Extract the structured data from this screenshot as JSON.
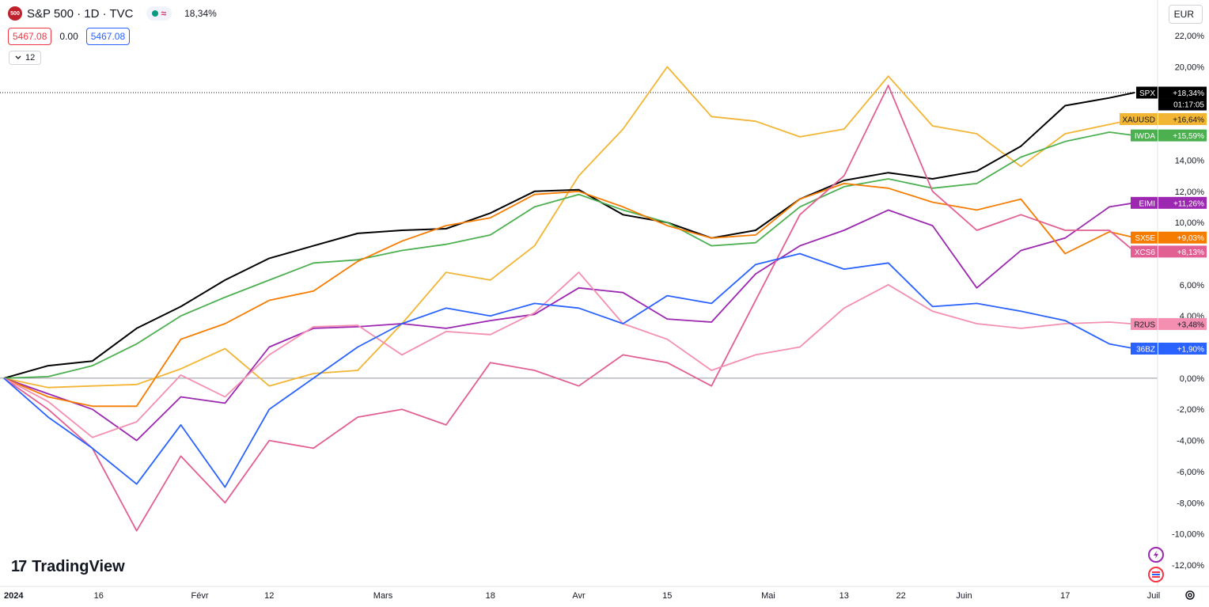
{
  "header": {
    "symbol_badge": "500",
    "title": "S&P 500 · 1D · TVC",
    "status_wave": "≈",
    "change": "18,34%",
    "price_left": "5467.08",
    "price_mid": "0.00",
    "price_right": "5467.08",
    "indicator_toggle": "12",
    "currency": "EUR"
  },
  "branding": {
    "logo_mark": "17",
    "logo_text": "TradingView"
  },
  "icons": {
    "collapse": "chevron-down-icon",
    "settings": "gear-icon",
    "lightning": "lightning-icon",
    "flag": "flag-icon",
    "currency_dropdown": "chevron-down-icon"
  },
  "chart_data": {
    "type": "line",
    "ylabel": "",
    "yscale": "percent",
    "ylim": [
      -13,
      23
    ],
    "yticks": [
      22,
      20,
      14,
      12,
      10,
      6,
      4,
      0,
      -2,
      -4,
      -6,
      -8,
      -10,
      -12
    ],
    "ytick_labels": [
      "22,00%",
      "20,00%",
      "14,00%",
      "12,00%",
      "10,00%",
      "6,00%",
      "4,00%",
      "0,00%",
      "-2,00%",
      "-4,00%",
      "-6,00%",
      "-8,00%",
      "-10,00%",
      "-12,00%"
    ],
    "xlim": [
      "2024-01-01",
      "2024-07-01"
    ],
    "xticks": [
      {
        "date": "2024-01-01",
        "label": "2024",
        "bold": true
      },
      {
        "date": "2024-01-16",
        "label": "16"
      },
      {
        "date": "2024-02-01",
        "label": "Févr"
      },
      {
        "date": "2024-02-12",
        "label": "12"
      },
      {
        "date": "2024-03-01",
        "label": "Mars"
      },
      {
        "date": "2024-03-18",
        "label": "18"
      },
      {
        "date": "2024-04-01",
        "label": "Avr"
      },
      {
        "date": "2024-04-15",
        "label": "15"
      },
      {
        "date": "2024-05-01",
        "label": "Mai"
      },
      {
        "date": "2024-05-13",
        "label": "13"
      },
      {
        "date": "2024-05-22",
        "label": "22"
      },
      {
        "date": "2024-06-01",
        "label": "Juin"
      },
      {
        "date": "2024-06-17",
        "label": "17"
      },
      {
        "date": "2024-07-01",
        "label": "Juil"
      }
    ],
    "zero_line": 0,
    "price_line": {
      "value": 18.34,
      "style": "dotted"
    },
    "legend_placement": "right-axis",
    "series": [
      {
        "name": "XAUUSD",
        "label": "+16,64%",
        "color": "#f2b534",
        "label_text_color": "#131722",
        "points": [
          [
            "2024-01-01",
            0
          ],
          [
            "2024-01-08",
            -0.6
          ],
          [
            "2024-01-15",
            -0.5
          ],
          [
            "2024-01-22",
            -0.4
          ],
          [
            "2024-01-29",
            0.6
          ],
          [
            "2024-02-05",
            1.9
          ],
          [
            "2024-02-12",
            -0.5
          ],
          [
            "2024-02-19",
            0.3
          ],
          [
            "2024-02-26",
            0.5
          ],
          [
            "2024-03-04",
            3.5
          ],
          [
            "2024-03-11",
            6.8
          ],
          [
            "2024-03-18",
            6.3
          ],
          [
            "2024-03-25",
            8.5
          ],
          [
            "2024-04-01",
            13.0
          ],
          [
            "2024-04-08",
            16.0
          ],
          [
            "2024-04-15",
            20.0
          ],
          [
            "2024-04-22",
            16.8
          ],
          [
            "2024-04-29",
            16.5
          ],
          [
            "2024-05-06",
            15.5
          ],
          [
            "2024-05-13",
            16.0
          ],
          [
            "2024-05-20",
            19.4
          ],
          [
            "2024-05-27",
            16.2
          ],
          [
            "2024-06-03",
            15.7
          ],
          [
            "2024-06-10",
            13.6
          ],
          [
            "2024-06-17",
            15.7
          ],
          [
            "2024-06-24",
            16.3
          ],
          [
            "2024-06-28",
            16.64
          ]
        ]
      },
      {
        "name": "SPX",
        "label": "+18,34%",
        "sublabel": "01:17:05",
        "color": "#000000",
        "label_text_color": "#ffffff",
        "points": [
          [
            "2024-01-01",
            0
          ],
          [
            "2024-01-08",
            0.8
          ],
          [
            "2024-01-15",
            1.1
          ],
          [
            "2024-01-22",
            3.2
          ],
          [
            "2024-01-29",
            4.6
          ],
          [
            "2024-02-05",
            6.3
          ],
          [
            "2024-02-12",
            7.7
          ],
          [
            "2024-02-19",
            8.5
          ],
          [
            "2024-02-26",
            9.3
          ],
          [
            "2024-03-04",
            9.5
          ],
          [
            "2024-03-11",
            9.6
          ],
          [
            "2024-03-18",
            10.6
          ],
          [
            "2024-03-25",
            12.0
          ],
          [
            "2024-04-01",
            12.1
          ],
          [
            "2024-04-08",
            10.5
          ],
          [
            "2024-04-15",
            10.0
          ],
          [
            "2024-04-22",
            9.0
          ],
          [
            "2024-04-29",
            9.5
          ],
          [
            "2024-05-06",
            11.5
          ],
          [
            "2024-05-13",
            12.7
          ],
          [
            "2024-05-20",
            13.2
          ],
          [
            "2024-05-27",
            12.8
          ],
          [
            "2024-06-03",
            13.3
          ],
          [
            "2024-06-10",
            14.9
          ],
          [
            "2024-06-17",
            17.5
          ],
          [
            "2024-06-24",
            18.0
          ],
          [
            "2024-06-28",
            18.34
          ]
        ]
      },
      {
        "name": "IWDA",
        "label": "+15,59%",
        "color": "#4caf50",
        "label_text_color": "#ffffff",
        "points": [
          [
            "2024-01-01",
            0
          ],
          [
            "2024-01-08",
            0.1
          ],
          [
            "2024-01-15",
            0.8
          ],
          [
            "2024-01-22",
            2.2
          ],
          [
            "2024-01-29",
            4.0
          ],
          [
            "2024-02-05",
            5.2
          ],
          [
            "2024-02-12",
            6.3
          ],
          [
            "2024-02-19",
            7.4
          ],
          [
            "2024-02-26",
            7.6
          ],
          [
            "2024-03-04",
            8.2
          ],
          [
            "2024-03-11",
            8.6
          ],
          [
            "2024-03-18",
            9.2
          ],
          [
            "2024-03-25",
            11.0
          ],
          [
            "2024-04-01",
            11.8
          ],
          [
            "2024-04-08",
            10.8
          ],
          [
            "2024-04-15",
            10.0
          ],
          [
            "2024-04-22",
            8.5
          ],
          [
            "2024-04-29",
            8.7
          ],
          [
            "2024-05-06",
            11.0
          ],
          [
            "2024-05-13",
            12.3
          ],
          [
            "2024-05-20",
            12.8
          ],
          [
            "2024-05-27",
            12.2
          ],
          [
            "2024-06-03",
            12.5
          ],
          [
            "2024-06-10",
            14.2
          ],
          [
            "2024-06-17",
            15.2
          ],
          [
            "2024-06-24",
            15.8
          ],
          [
            "2024-06-28",
            15.59
          ]
        ]
      },
      {
        "name": "EIMI",
        "label": "+11,26%",
        "color": "#9c27b0",
        "label_text_color": "#ffffff",
        "points": [
          [
            "2024-01-01",
            0
          ],
          [
            "2024-01-08",
            -1.0
          ],
          [
            "2024-01-15",
            -2.0
          ],
          [
            "2024-01-22",
            -4.0
          ],
          [
            "2024-01-29",
            -1.2
          ],
          [
            "2024-02-05",
            -1.6
          ],
          [
            "2024-02-12",
            2.0
          ],
          [
            "2024-02-19",
            3.2
          ],
          [
            "2024-02-26",
            3.3
          ],
          [
            "2024-03-04",
            3.5
          ],
          [
            "2024-03-11",
            3.2
          ],
          [
            "2024-03-18",
            3.7
          ],
          [
            "2024-03-25",
            4.1
          ],
          [
            "2024-04-01",
            5.8
          ],
          [
            "2024-04-08",
            5.5
          ],
          [
            "2024-04-15",
            3.8
          ],
          [
            "2024-04-22",
            3.6
          ],
          [
            "2024-04-29",
            6.7
          ],
          [
            "2024-05-06",
            8.5
          ],
          [
            "2024-05-13",
            9.5
          ],
          [
            "2024-05-20",
            10.8
          ],
          [
            "2024-05-27",
            9.8
          ],
          [
            "2024-06-03",
            5.8
          ],
          [
            "2024-06-10",
            8.2
          ],
          [
            "2024-06-17",
            9.0
          ],
          [
            "2024-06-24",
            11.0
          ],
          [
            "2024-06-28",
            11.26
          ]
        ]
      },
      {
        "name": "SX5E",
        "label": "+9,03%",
        "color": "#f57c00",
        "label_text_color": "#ffffff",
        "points": [
          [
            "2024-01-01",
            0
          ],
          [
            "2024-01-08",
            -1.2
          ],
          [
            "2024-01-15",
            -1.8
          ],
          [
            "2024-01-22",
            -1.8
          ],
          [
            "2024-01-29",
            2.5
          ],
          [
            "2024-02-05",
            3.5
          ],
          [
            "2024-02-12",
            5.0
          ],
          [
            "2024-02-19",
            5.6
          ],
          [
            "2024-02-26",
            7.5
          ],
          [
            "2024-03-04",
            8.8
          ],
          [
            "2024-03-11",
            9.8
          ],
          [
            "2024-03-18",
            10.3
          ],
          [
            "2024-03-25",
            11.8
          ],
          [
            "2024-04-01",
            12.0
          ],
          [
            "2024-04-08",
            11.0
          ],
          [
            "2024-04-15",
            9.8
          ],
          [
            "2024-04-22",
            9.0
          ],
          [
            "2024-04-29",
            9.2
          ],
          [
            "2024-05-06",
            11.5
          ],
          [
            "2024-05-13",
            12.5
          ],
          [
            "2024-05-20",
            12.2
          ],
          [
            "2024-05-27",
            11.3
          ],
          [
            "2024-06-03",
            10.8
          ],
          [
            "2024-06-10",
            11.5
          ],
          [
            "2024-06-17",
            8.0
          ],
          [
            "2024-06-24",
            9.4
          ],
          [
            "2024-06-28",
            9.03
          ]
        ]
      },
      {
        "name": "XCS6",
        "label": "+8,13%",
        "color": "#e25f93",
        "label_text_color": "#ffffff",
        "points": [
          [
            "2024-01-01",
            0
          ],
          [
            "2024-01-08",
            -2.0
          ],
          [
            "2024-01-15",
            -4.5
          ],
          [
            "2024-01-22",
            -9.8
          ],
          [
            "2024-01-29",
            -5.0
          ],
          [
            "2024-02-05",
            -8.0
          ],
          [
            "2024-02-12",
            -4.0
          ],
          [
            "2024-02-19",
            -4.5
          ],
          [
            "2024-02-26",
            -2.5
          ],
          [
            "2024-03-04",
            -2.0
          ],
          [
            "2024-03-11",
            -3.0
          ],
          [
            "2024-03-18",
            1.0
          ],
          [
            "2024-03-25",
            0.5
          ],
          [
            "2024-04-01",
            -0.5
          ],
          [
            "2024-04-08",
            1.5
          ],
          [
            "2024-04-15",
            1.0
          ],
          [
            "2024-04-22",
            -0.5
          ],
          [
            "2024-04-29",
            5.0
          ],
          [
            "2024-05-06",
            10.5
          ],
          [
            "2024-05-13",
            13.0
          ],
          [
            "2024-05-20",
            18.8
          ],
          [
            "2024-05-27",
            12.0
          ],
          [
            "2024-06-03",
            9.5
          ],
          [
            "2024-06-10",
            10.5
          ],
          [
            "2024-06-17",
            9.5
          ],
          [
            "2024-06-24",
            9.5
          ],
          [
            "2024-06-28",
            8.13
          ]
        ]
      },
      {
        "name": "R2US",
        "label": "+3,48%",
        "color": "#f48fb1",
        "label_text_color": "#131722",
        "points": [
          [
            "2024-01-01",
            0
          ],
          [
            "2024-01-08",
            -1.5
          ],
          [
            "2024-01-15",
            -3.8
          ],
          [
            "2024-01-22",
            -2.8
          ],
          [
            "2024-01-29",
            0.2
          ],
          [
            "2024-02-05",
            -1.2
          ],
          [
            "2024-02-12",
            1.5
          ],
          [
            "2024-02-19",
            3.3
          ],
          [
            "2024-02-26",
            3.4
          ],
          [
            "2024-03-04",
            1.5
          ],
          [
            "2024-03-11",
            3.0
          ],
          [
            "2024-03-18",
            2.8
          ],
          [
            "2024-03-25",
            4.2
          ],
          [
            "2024-04-01",
            6.8
          ],
          [
            "2024-04-08",
            3.5
          ],
          [
            "2024-04-15",
            2.5
          ],
          [
            "2024-04-22",
            0.5
          ],
          [
            "2024-04-29",
            1.5
          ],
          [
            "2024-05-06",
            2.0
          ],
          [
            "2024-05-13",
            4.5
          ],
          [
            "2024-05-20",
            6.0
          ],
          [
            "2024-05-27",
            4.3
          ],
          [
            "2024-06-03",
            3.5
          ],
          [
            "2024-06-10",
            3.2
          ],
          [
            "2024-06-17",
            3.5
          ],
          [
            "2024-06-24",
            3.6
          ],
          [
            "2024-06-28",
            3.48
          ]
        ]
      },
      {
        "name": "36BZ",
        "label": "+1,90%",
        "color": "#2962ff",
        "label_text_color": "#ffffff",
        "points": [
          [
            "2024-01-01",
            0
          ],
          [
            "2024-01-08",
            -2.5
          ],
          [
            "2024-01-15",
            -4.5
          ],
          [
            "2024-01-22",
            -6.8
          ],
          [
            "2024-01-29",
            -3.0
          ],
          [
            "2024-02-05",
            -7.0
          ],
          [
            "2024-02-12",
            -2.0
          ],
          [
            "2024-02-19",
            0.0
          ],
          [
            "2024-02-26",
            2.0
          ],
          [
            "2024-03-04",
            3.5
          ],
          [
            "2024-03-11",
            4.5
          ],
          [
            "2024-03-18",
            4.0
          ],
          [
            "2024-03-25",
            4.8
          ],
          [
            "2024-04-01",
            4.5
          ],
          [
            "2024-04-08",
            3.5
          ],
          [
            "2024-04-15",
            5.3
          ],
          [
            "2024-04-22",
            4.8
          ],
          [
            "2024-04-29",
            7.3
          ],
          [
            "2024-05-06",
            8.0
          ],
          [
            "2024-05-13",
            7.0
          ],
          [
            "2024-05-20",
            7.4
          ],
          [
            "2024-05-27",
            4.6
          ],
          [
            "2024-06-03",
            4.8
          ],
          [
            "2024-06-10",
            4.3
          ],
          [
            "2024-06-17",
            3.7
          ],
          [
            "2024-06-24",
            2.2
          ],
          [
            "2024-06-28",
            1.9
          ]
        ]
      }
    ]
  }
}
